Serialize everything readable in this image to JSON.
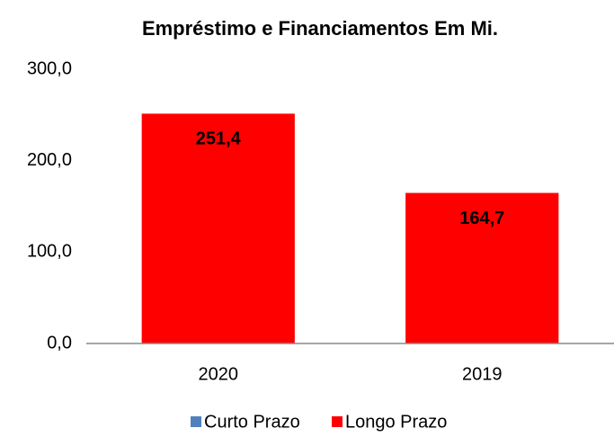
{
  "chart_data": {
    "type": "bar",
    "stacked": true,
    "title": "Empréstimo e Financiamentos Em Mi.",
    "categories": [
      "2020",
      "2019"
    ],
    "series": [
      {
        "name": "Curto Prazo",
        "color": "#4f81bd",
        "values": [
          0,
          0
        ]
      },
      {
        "name": "Longo Prazo",
        "color": "#ff0000",
        "values": [
          251.4,
          164.7
        ],
        "value_labels": [
          "251,4",
          "164,7"
        ]
      }
    ],
    "ylim": [
      0,
      300
    ],
    "yticks": [
      {
        "value": 0,
        "label": "0,0"
      },
      {
        "value": 100,
        "label": "100,0"
      },
      {
        "value": 200,
        "label": "200,0"
      },
      {
        "value": 300,
        "label": "300,0"
      }
    ],
    "grid": false,
    "legend": "bottom"
  }
}
